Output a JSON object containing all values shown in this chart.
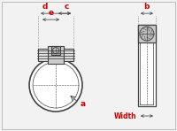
{
  "bg_color": "#f2f2f2",
  "border_color": "#bbbbbb",
  "line_color": "#444444",
  "dim_color": "#cc0000",
  "label_a": "a",
  "label_b": "b",
  "label_c": "c",
  "label_d": "d",
  "label_e": "e",
  "label_width": "Width",
  "lw_main": 1.2,
  "lw_thin": 0.6,
  "lw_dim": 0.7
}
